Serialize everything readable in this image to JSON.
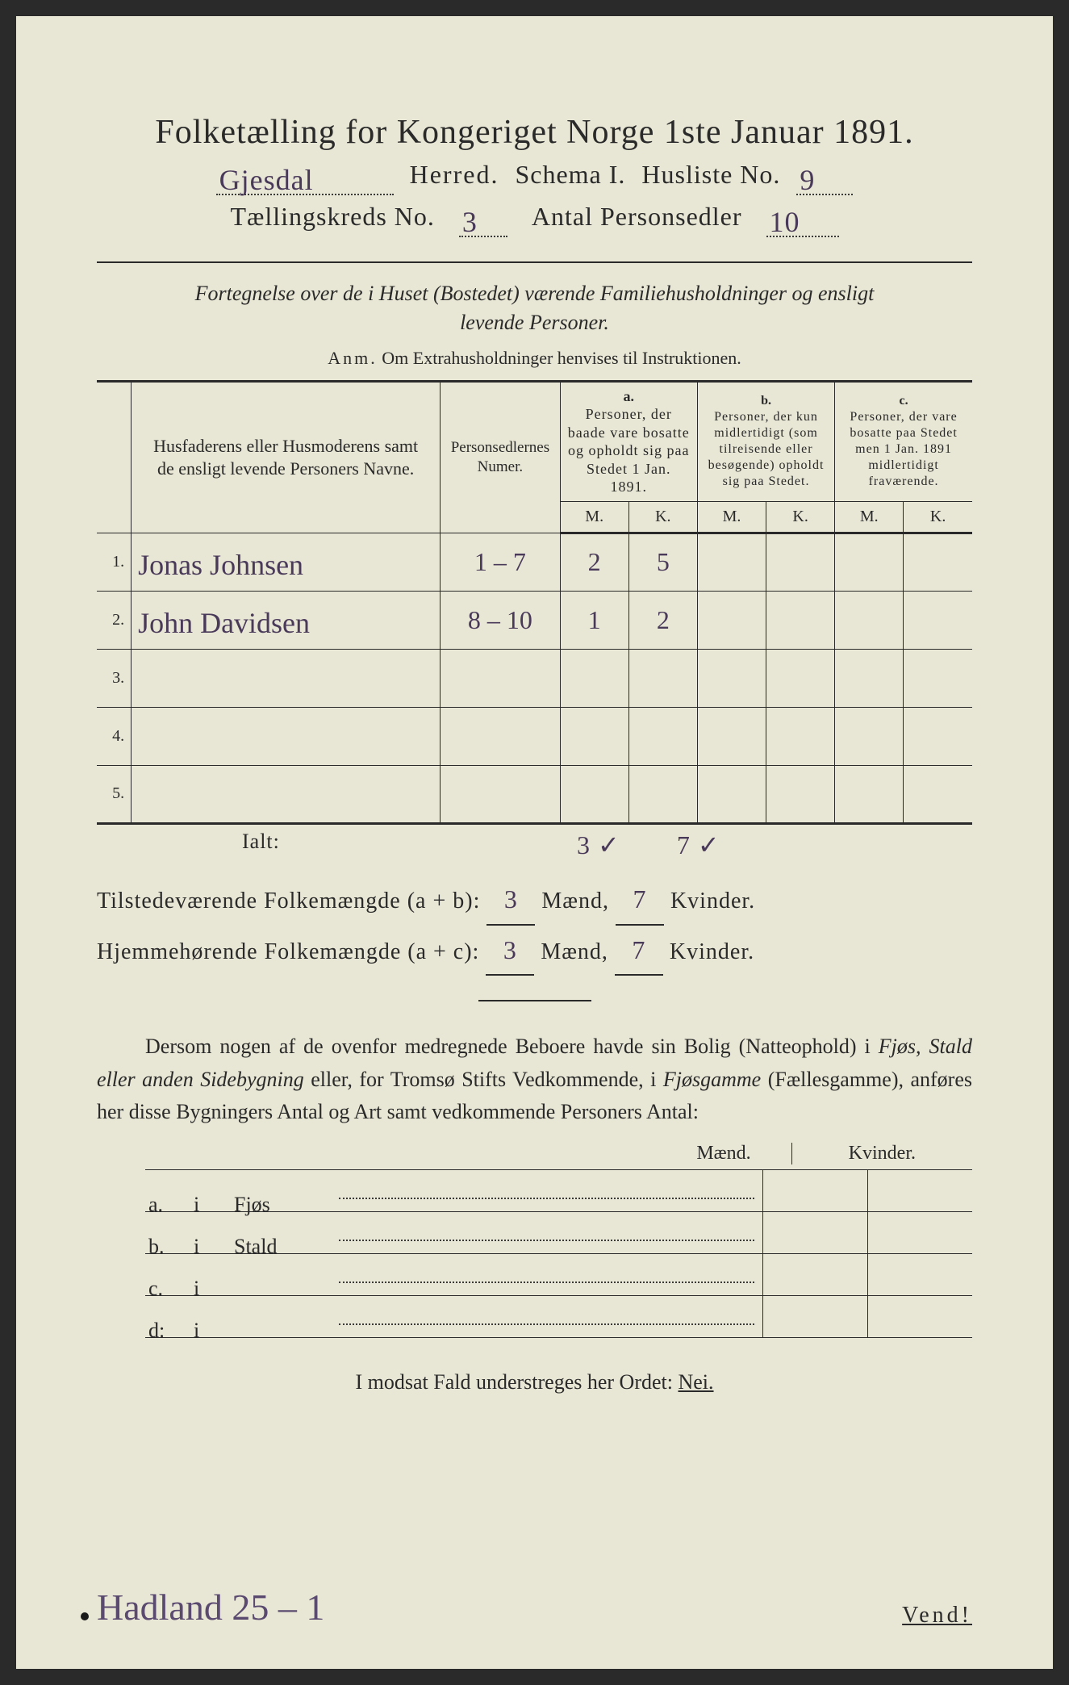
{
  "header": {
    "title": "Folketælling for Kongeriget Norge 1ste Januar 1891.",
    "herred_value": "Gjesdal",
    "herred_label": "Herred.",
    "schema_label": "Schema I.",
    "husliste_label": "Husliste No.",
    "husliste_value": "9",
    "kreds_label": "Tællingskreds No.",
    "kreds_value": "3",
    "antal_label": "Antal Personsedler",
    "antal_value": "10"
  },
  "desc": {
    "line1": "Fortegnelse over de i Huset (Bostedet) værende Familiehusholdninger og ensligt",
    "line2": "levende Personer.",
    "anm_lead": "Anm.",
    "anm_rest": "Om Extrahusholdninger henvises til Instruktionen."
  },
  "table": {
    "head": {
      "names": "Husfaderens eller Husmoderens samt de ensligt levende Personers Navne.",
      "numer": "Personsedlernes Numer.",
      "a_label": "a.",
      "a_text": "Personer, der baade vare bosatte og opholdt sig paa Stedet 1 Jan. 1891.",
      "b_label": "b.",
      "b_text": "Personer, der kun midlertidigt (som tilreisende eller besøgende) opholdt sig paa Stedet.",
      "c_label": "c.",
      "c_text": "Personer, der vare bosatte paa Stedet men 1 Jan. 1891 midlertidigt fraværende.",
      "M": "M.",
      "K": "K."
    },
    "rows": [
      {
        "n": "1.",
        "name": "Jonas Johnsen",
        "numer": "1 – 7",
        "aM": "2",
        "aK": "5",
        "bM": "",
        "bK": "",
        "cM": "",
        "cK": ""
      },
      {
        "n": "2.",
        "name": "John Davidsen",
        "numer": "8 – 10",
        "aM": "1",
        "aK": "2",
        "bM": "",
        "bK": "",
        "cM": "",
        "cK": ""
      },
      {
        "n": "3.",
        "name": "",
        "numer": "",
        "aM": "",
        "aK": "",
        "bM": "",
        "bK": "",
        "cM": "",
        "cK": ""
      },
      {
        "n": "4.",
        "name": "",
        "numer": "",
        "aM": "",
        "aK": "",
        "bM": "",
        "bK": "",
        "cM": "",
        "cK": ""
      },
      {
        "n": "5.",
        "name": "",
        "numer": "",
        "aM": "",
        "aK": "",
        "bM": "",
        "bK": "",
        "cM": "",
        "cK": ""
      }
    ],
    "ialt_label": "Ialt:",
    "ialt_aM": "3 ✓",
    "ialt_aK": "7 ✓"
  },
  "summary": {
    "line1_a": "Tilstedeværende Folkemængde (a + b):",
    "line1_m": "3",
    "line1_mlabel": "Mænd,",
    "line1_k": "7",
    "line1_klabel": "Kvinder.",
    "line2_a": "Hjemmehørende Folkemængde (a + c):",
    "line2_m": "3",
    "line2_k": "7"
  },
  "para": {
    "text1": "Dersom nogen af de ovenfor medregnede Beboere havde sin Bolig (Natteophold) i ",
    "ital1": "Fjøs, Stald eller anden Sidebygning",
    "text2": " eller, for Tromsø Stifts Vedkommende, i ",
    "ital2": "Fjøsgamme",
    "text3": " (Fællesgamme), anføres her disse Bygningers Antal og Art samt vedkommende Personers Antal:"
  },
  "bldg": {
    "M": "Mænd.",
    "K": "Kvinder.",
    "rows": [
      {
        "lab": "a.",
        "i": "i",
        "name": "Fjøs"
      },
      {
        "lab": "b.",
        "i": "i",
        "name": "Stald"
      },
      {
        "lab": "c.",
        "i": "i",
        "name": ""
      },
      {
        "lab": "d:",
        "i": "i",
        "name": ""
      }
    ]
  },
  "footer": {
    "text": "I modsat Fald understreges her Ordet: ",
    "nei": "Nei.",
    "bottom_hw": "Hadland 25 – 1",
    "vend": "Vend!"
  },
  "style": {
    "paper": "#e8e6d4",
    "ink": "#2a2a2a",
    "handwriting": "#4a3a5a"
  }
}
